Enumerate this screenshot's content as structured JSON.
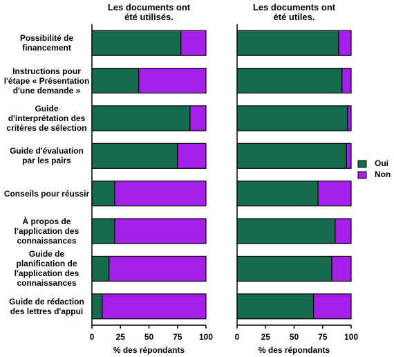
{
  "chart_data": {
    "type": "bar",
    "orientation": "horizontal",
    "stacked": true,
    "categories": [
      "Possibilité de\nfinancement",
      "Instructions pour\nl'étape « Présentation\nd'une demande »",
      "Guide\nd'interprétation des\ncritères de sélection",
      "Guide d'évaluation\npar les pairs",
      "Conseils pour réussir",
      "À propos de\nl'application des\nconnaissances",
      "Guide de\nplanification de\nl'application des\nconnaissances",
      "Guide de rédaction\ndes lettres d'appui"
    ],
    "series": [
      {
        "name": "Oui",
        "color": "#176b4d"
      },
      {
        "name": "Non",
        "color": "#a61fe8"
      }
    ],
    "legend": "right",
    "xlim": [
      0,
      100
    ],
    "xticks": [
      0,
      25,
      50,
      75,
      100
    ],
    "panels": [
      {
        "title": "Les documents ont\nété utilisés.",
        "xlabel": "% des répondants",
        "values": [
          [
            78,
            41,
            86,
            75,
            20,
            20,
            15,
            9
          ],
          [
            22,
            59,
            14,
            25,
            80,
            80,
            85,
            91
          ]
        ]
      },
      {
        "title": "Les documents ont\nété utiles.",
        "xlabel": "% des répondants",
        "values": [
          [
            89,
            92,
            97,
            96,
            71,
            86,
            83,
            67
          ],
          [
            11,
            8,
            3,
            4,
            29,
            14,
            17,
            33
          ]
        ]
      }
    ]
  }
}
